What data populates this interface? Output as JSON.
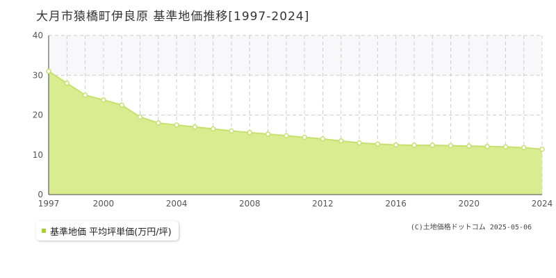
{
  "title": "大月市猿橋町伊良原 基準地価推移[1997-2024]",
  "credit": "(C)土地価格ドットコム 2025-05-06",
  "legend": {
    "label": "基準地価 平均坪単価(万円/坪)"
  },
  "colors": {
    "line": "#c6e06e",
    "fill": "#d9ec8f",
    "marker_fill": "#ffffff",
    "band": "#f8f8fa",
    "grid": "#cccccc",
    "legend_swatch": "#a8d02c"
  },
  "chart_data": {
    "type": "area",
    "title": "大月市猿橋町伊良原 基準地価推移[1997-2024]",
    "xlabel": "",
    "ylabel": "",
    "x": [
      1997,
      1998,
      1999,
      2000,
      2001,
      2002,
      2003,
      2004,
      2005,
      2006,
      2007,
      2008,
      2009,
      2010,
      2011,
      2012,
      2013,
      2014,
      2015,
      2016,
      2017,
      2018,
      2019,
      2020,
      2021,
      2022,
      2023,
      2024
    ],
    "series": [
      {
        "name": "基準地価 平均坪単価(万円/坪)",
        "values": [
          31.0,
          28.0,
          25.0,
          23.8,
          22.5,
          19.5,
          18.0,
          17.5,
          17.0,
          16.5,
          16.0,
          15.6,
          15.2,
          14.8,
          14.4,
          14.0,
          13.5,
          13.0,
          12.7,
          12.5,
          12.4,
          12.4,
          12.3,
          12.2,
          12.1,
          12.0,
          11.8,
          11.4
        ]
      }
    ],
    "xlim": [
      1997,
      2024
    ],
    "ylim": [
      0,
      40
    ],
    "x_ticks": [
      "1997",
      "2000",
      "2004",
      "2008",
      "2012",
      "2016",
      "2020",
      "2024"
    ],
    "y_ticks": [
      "0",
      "10",
      "20",
      "30",
      "40"
    ],
    "highlight_band": [
      30,
      40
    ],
    "grid": true,
    "legend_position": "bottom-left"
  }
}
